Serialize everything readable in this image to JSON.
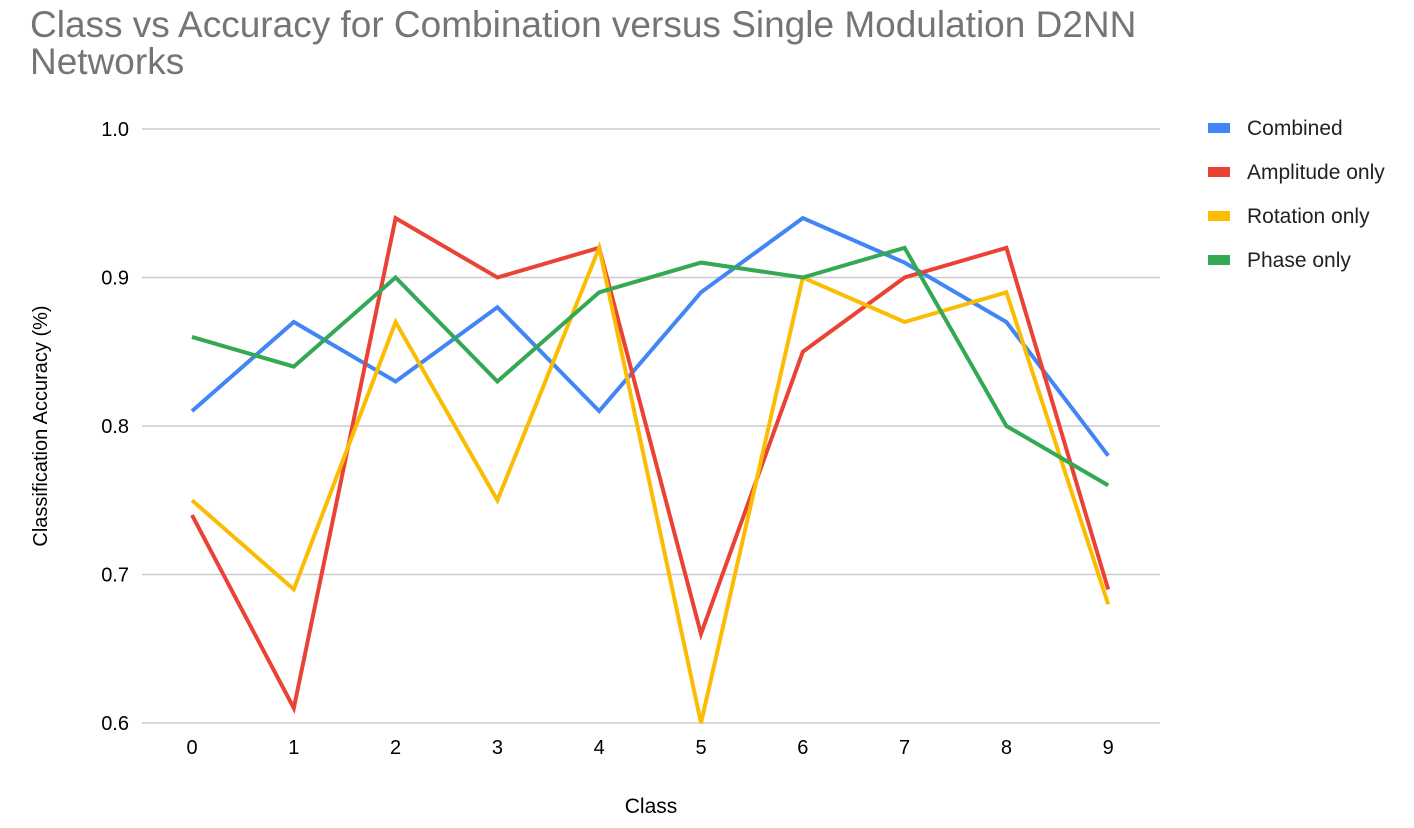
{
  "chart_data": {
    "type": "line",
    "title": "Class vs Accuracy for Combination versus Single Modulation D2NN Networks",
    "xlabel": "Class",
    "ylabel": "Classification Accuracy (%)",
    "x": [
      "0",
      "1",
      "2",
      "3",
      "4",
      "5",
      "6",
      "7",
      "8",
      "9"
    ],
    "ylim": [
      0.6,
      1.0
    ],
    "yticks": [
      "0.6",
      "0.7",
      "0.8",
      "0.9",
      "1.0"
    ],
    "grid": true,
    "legend_position": "right",
    "series": [
      {
        "name": "Combined",
        "color": "#4285f4",
        "values": [
          0.81,
          0.87,
          0.83,
          0.88,
          0.81,
          0.89,
          0.94,
          0.91,
          0.87,
          0.78
        ]
      },
      {
        "name": "Amplitude only",
        "color": "#ea4335",
        "values": [
          0.74,
          0.61,
          0.94,
          0.9,
          0.92,
          0.66,
          0.85,
          0.9,
          0.92,
          0.69
        ]
      },
      {
        "name": "Rotation only",
        "color": "#fbbc04",
        "values": [
          0.75,
          0.69,
          0.87,
          0.75,
          0.92,
          0.6,
          0.9,
          0.87,
          0.89,
          0.68
        ]
      },
      {
        "name": "Phase only",
        "color": "#34a853",
        "values": [
          0.86,
          0.84,
          0.9,
          0.83,
          0.89,
          0.91,
          0.9,
          0.92,
          0.8,
          0.76
        ]
      }
    ]
  }
}
